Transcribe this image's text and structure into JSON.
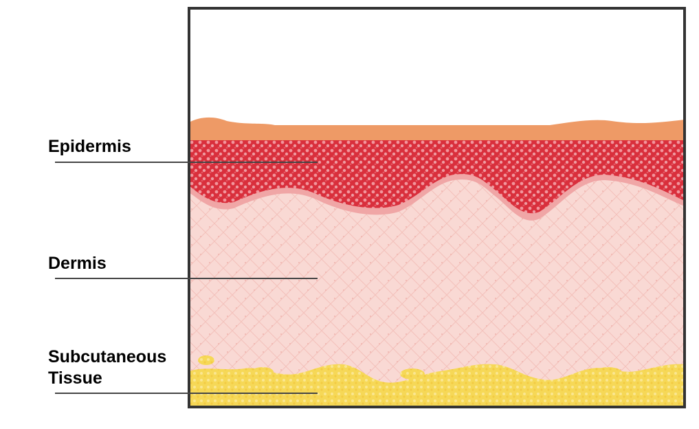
{
  "labels": {
    "epidermis": "Epidermis",
    "dermis": "Dermis",
    "subcutaneous_line1": "Subcutaneous",
    "subcutaneous_line2": "Tissue"
  },
  "colors": {
    "frame": "#333333",
    "stratum_corneum": "#ee9a66",
    "epidermis": "#d92f3c",
    "epidermis_cells": "#f7a7ad",
    "dermis": "#f9d9d4",
    "dermis_border": "#f3a9a5",
    "subcutaneous": "#f6d857",
    "leader_line": "#444444"
  }
}
